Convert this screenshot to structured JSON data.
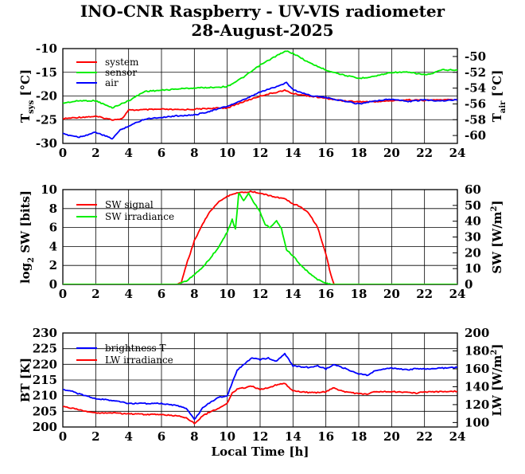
{
  "page": {
    "title": "INO-CNR Raspberry - UV-VIS radiometer",
    "subtitle": "28-August-2025"
  },
  "colors": {
    "red": "#ff0000",
    "green": "#00ee00",
    "blue": "#0000ff",
    "axis": "#000000",
    "grid": "#000000"
  },
  "chart_data": [
    {
      "type": "line",
      "x_ticks": [
        "0",
        "2",
        "4",
        "6",
        "8",
        "10",
        "12",
        "14",
        "16",
        "18",
        "20",
        "22",
        "24"
      ],
      "xlim": [
        0,
        24
      ],
      "ylim": [
        -30,
        -10
      ],
      "y_ticks": [
        "-10",
        "-15",
        "-20",
        "-25",
        "-30"
      ],
      "ylabel": {
        "main": "T",
        "sub": "sys",
        "unit": " [°C]"
      },
      "y2lim": [
        -61,
        -49
      ],
      "y2_ticks": [
        "-50",
        "-52",
        "-54",
        "-56",
        "-58",
        "-60"
      ],
      "y2label": {
        "main": "T",
        "sub": "air",
        "unit": " [°C]"
      },
      "legend": [
        "system",
        "sensor",
        "air"
      ],
      "series": [
        {
          "name": "system",
          "color": "red",
          "axis": "left",
          "x": [
            0,
            1,
            2,
            3,
            3.6,
            4,
            5,
            6,
            7,
            8,
            9,
            10,
            11,
            12,
            13,
            13.5,
            14,
            15,
            16,
            17,
            18,
            19,
            20,
            21,
            22,
            23,
            24
          ],
          "y": [
            -24.8,
            -24.5,
            -24.3,
            -25,
            -24.8,
            -23,
            -22.9,
            -22.8,
            -22.9,
            -22.8,
            -22.6,
            -22.5,
            -21.2,
            -20,
            -19.2,
            -18.8,
            -19.5,
            -20,
            -20.5,
            -21,
            -21.2,
            -21.2,
            -21,
            -20.8,
            -20.9,
            -20.8,
            -20.8
          ]
        },
        {
          "name": "sensor",
          "color": "green",
          "axis": "left",
          "x": [
            0,
            1,
            2,
            3,
            4,
            5,
            6,
            7,
            8,
            9,
            10,
            11,
            12,
            13,
            13.6,
            14,
            15,
            16,
            17,
            18,
            19,
            20,
            21,
            22,
            22.5,
            23,
            24
          ],
          "y": [
            -21.5,
            -21,
            -21,
            -22.5,
            -21,
            -19,
            -18.8,
            -18.5,
            -18.3,
            -18.2,
            -18,
            -16,
            -13.5,
            -11.5,
            -10.5,
            -11,
            -13,
            -14.5,
            -15.5,
            -16.3,
            -15.8,
            -15,
            -15,
            -15.5,
            -15.3,
            -14.5,
            -14.5
          ]
        },
        {
          "name": "air",
          "color": "blue",
          "axis": "right",
          "x": [
            0,
            1,
            2,
            3,
            3.5,
            4,
            5,
            6,
            7,
            8,
            9,
            10,
            11,
            12,
            13,
            13.6,
            14,
            15,
            16,
            17,
            18,
            19,
            20,
            21,
            22,
            23,
            24
          ],
          "y": [
            -59.8,
            -60.2,
            -59.6,
            -60.4,
            -59.3,
            -58.8,
            -57.9,
            -57.7,
            -57.5,
            -57.4,
            -56.9,
            -56.3,
            -55.5,
            -54.5,
            -53.8,
            -53.3,
            -54.2,
            -54.9,
            -55.2,
            -55.6,
            -56,
            -55.6,
            -55.4,
            -55.7,
            -55.5,
            -55.6,
            -55.5
          ]
        }
      ]
    },
    {
      "type": "line",
      "x_ticks": [
        "0",
        "2",
        "4",
        "6",
        "8",
        "10",
        "12",
        "14",
        "16",
        "18",
        "20",
        "22",
        "24"
      ],
      "xlim": [
        0,
        24
      ],
      "ylim": [
        0,
        10
      ],
      "y_ticks": [
        "10",
        "8",
        "6",
        "4",
        "2",
        "0"
      ],
      "ylabel": {
        "main": "log",
        "sub": "2",
        "unit": " SW [bits]"
      },
      "y2lim": [
        0,
        60
      ],
      "y2_ticks": [
        "60",
        "50",
        "40",
        "30",
        "20",
        "10",
        "0"
      ],
      "y2label": {
        "main": "SW [W/m",
        "sup": "2",
        "unit": "]"
      },
      "legend": [
        "SW signal",
        "SW irradiance"
      ],
      "series": [
        {
          "name": "SW signal",
          "color": "red",
          "axis": "left",
          "x": [
            0,
            7,
            7.2,
            7.5,
            8,
            8.5,
            9,
            9.5,
            10,
            10.5,
            11,
            11.5,
            12,
            12.5,
            13,
            13.5,
            14,
            14.5,
            15,
            15.5,
            16,
            16.3,
            16.5,
            24
          ],
          "y": [
            0,
            0,
            0.2,
            2,
            4.6,
            6.4,
            7.8,
            8.7,
            9.3,
            9.6,
            9.7,
            9.8,
            9.6,
            9.4,
            9.2,
            9,
            8.5,
            8.2,
            7.4,
            6,
            3.2,
            1,
            0,
            0
          ]
        },
        {
          "name": "SW irradiance",
          "color": "green",
          "axis": "right",
          "x": [
            0,
            7,
            7.5,
            8,
            8.5,
            9,
            9.5,
            10,
            10.3,
            10.5,
            10.7,
            11,
            11.3,
            11.6,
            12,
            12.3,
            12.6,
            13,
            13.3,
            13.6,
            14,
            14.5,
            15,
            15.5,
            16,
            16.3,
            24
          ],
          "y": [
            0,
            0,
            2,
            6,
            11,
            17,
            24,
            33,
            41,
            35,
            58,
            53,
            58,
            52,
            46,
            38,
            36,
            40,
            35,
            22,
            18,
            12,
            7,
            3,
            1,
            0,
            0
          ]
        }
      ]
    },
    {
      "type": "line",
      "x_ticks": [
        "0",
        "2",
        "4",
        "6",
        "8",
        "10",
        "12",
        "14",
        "16",
        "18",
        "20",
        "22",
        "24"
      ],
      "xlim": [
        0,
        24
      ],
      "xlabel": "Local Time [h]",
      "ylim": [
        200,
        230
      ],
      "y_ticks": [
        "230",
        "225",
        "220",
        "215",
        "210",
        "205",
        "200"
      ],
      "ylabel": {
        "main": "BT [K]"
      },
      "y2lim": [
        95,
        200
      ],
      "y2_ticks": [
        "200",
        "180",
        "160",
        "140",
        "120",
        "100"
      ],
      "y2label": {
        "main": "LW [W/m",
        "sup": "2",
        "unit": "]"
      },
      "legend": [
        "brightness T",
        "LW irradiance"
      ],
      "series": [
        {
          "name": "brightness T",
          "color": "blue",
          "axis": "left",
          "x": [
            0,
            0.5,
            1,
            2,
            3,
            4,
            5,
            6,
            7,
            7.5,
            8,
            8.5,
            9,
            9.5,
            10,
            10.3,
            10.6,
            11,
            11.5,
            12,
            12.5,
            13,
            13.5,
            14,
            15,
            15.5,
            16,
            16.5,
            17,
            18,
            18.5,
            19,
            20,
            21,
            21.5,
            22,
            23,
            24
          ],
          "y": [
            212,
            211.5,
            210.5,
            209,
            208.5,
            207.5,
            207.5,
            207.5,
            206.8,
            206,
            202.3,
            206,
            208,
            209.5,
            210,
            214,
            218,
            220,
            222,
            221.5,
            222,
            221,
            223.5,
            219.5,
            219,
            219.5,
            218.5,
            220,
            219,
            217,
            216.5,
            218,
            218.8,
            218.3,
            218.6,
            218.5,
            218.8,
            219
          ]
        },
        {
          "name": "LW irradiance",
          "color": "red",
          "axis": "left",
          "x": [
            0,
            0.5,
            1,
            2,
            3,
            4,
            5,
            6,
            7,
            7.5,
            8,
            8.5,
            9,
            9.5,
            10,
            10.3,
            10.6,
            11,
            11.5,
            12,
            12.5,
            13,
            13.5,
            14,
            15,
            15.5,
            16,
            16.5,
            17,
            18,
            18.5,
            19,
            20,
            21,
            21.5,
            22,
            23,
            24
          ],
          "y": [
            206.5,
            206,
            205.5,
            204.5,
            204.5,
            204.2,
            204,
            204,
            203.5,
            203,
            201.2,
            203.5,
            205,
            206,
            207.5,
            211,
            212,
            212.5,
            213,
            212,
            212.5,
            213.5,
            214,
            211.5,
            211,
            211,
            211.3,
            212.5,
            211.4,
            210.6,
            210.5,
            211.2,
            211.3,
            211.1,
            210.8,
            211.2,
            211.3,
            211.4
          ]
        }
      ]
    }
  ]
}
